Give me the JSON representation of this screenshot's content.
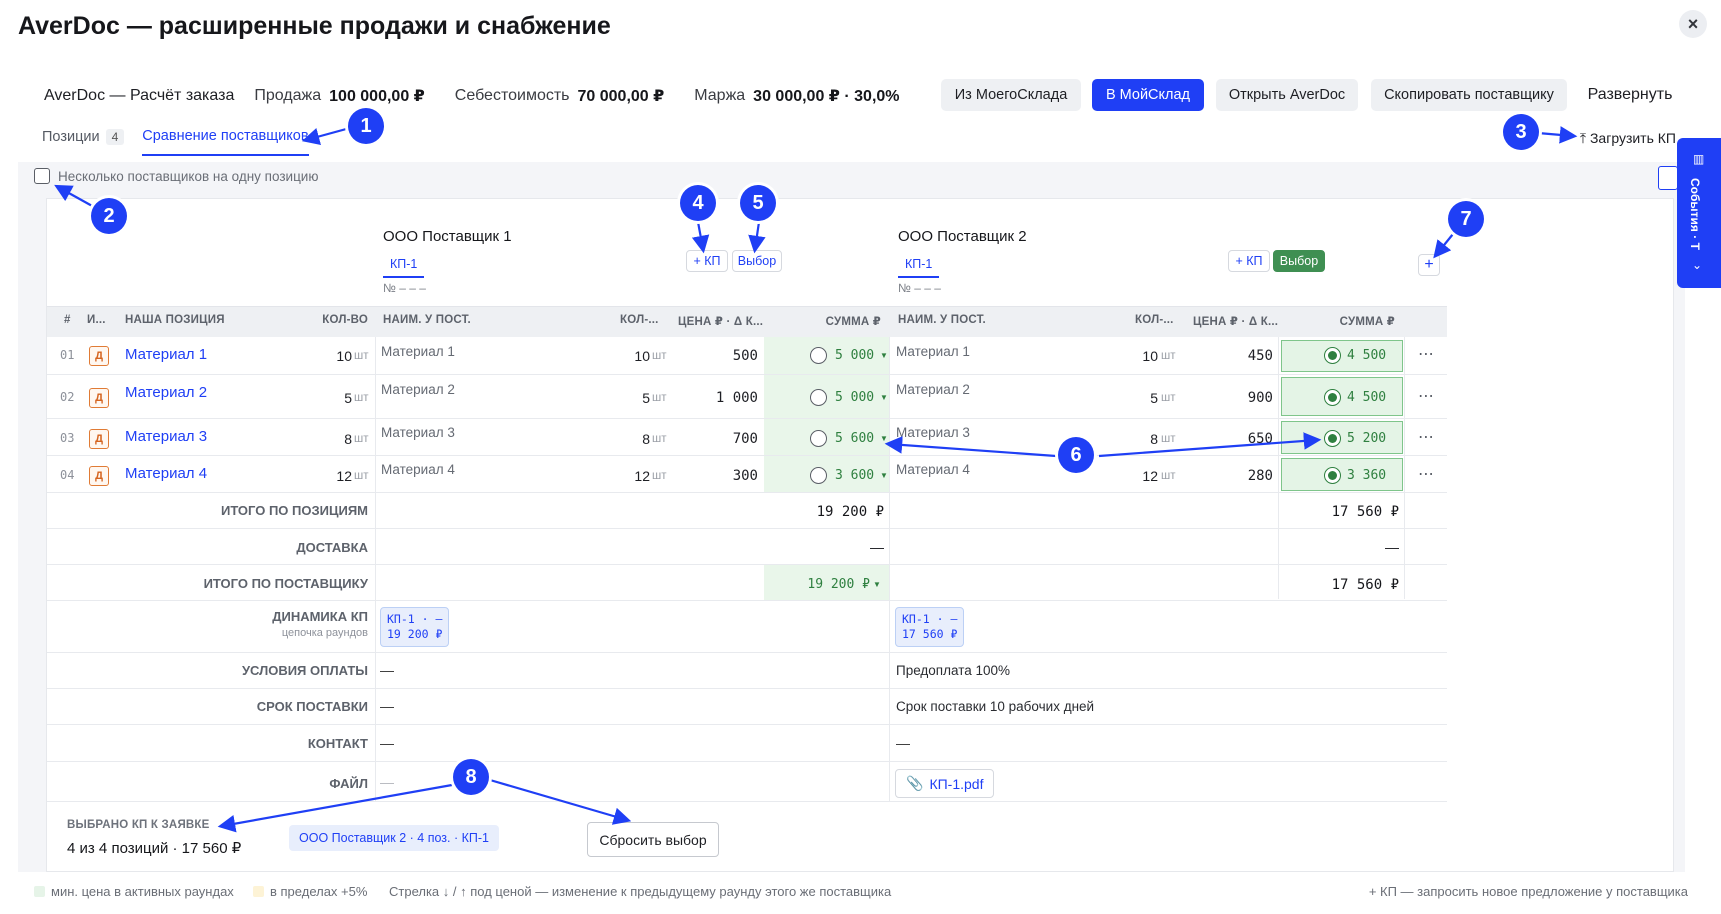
{
  "window": {
    "title": "AverDoc — расширенные продажи и снабжение",
    "close_icon": "×"
  },
  "summary": {
    "doc": "AverDoc — Расчёт заказа",
    "sale_label": "Продажа",
    "sale_value": "100 000,00 ₽",
    "cost_label": "Себестоимость",
    "cost_value": "70 000,00 ₽",
    "margin_label": "Маржа",
    "margin_value": "30 000,00 ₽ · 30,0%"
  },
  "toolbar": {
    "from_ms": "Из МоегоСклада",
    "to_ms": "В МойСклад",
    "open_averdoc": "Открыть AverDoc",
    "copy_supplier": "Скопировать поставщику",
    "expand": "Развернуть"
  },
  "tabs": [
    {
      "label": "Позиции",
      "count": "4"
    },
    {
      "label": "Сравнение поставщиков"
    }
  ],
  "upload_kp": "Загрузить КП",
  "side_panel": {
    "label": "События · Т"
  },
  "multi_supplier_label": "Несколько поставщиков на одну позицию",
  "suppliers": [
    {
      "name": "ООО Поставщик 1",
      "kp_tab": "КП-1",
      "doc_no": "№ – – –",
      "add_kp": "+ КП",
      "select": "Выбор"
    },
    {
      "name": "ООО Поставщик 2",
      "kp_tab": "КП-1",
      "doc_no": "№ – – –",
      "add_kp": "+ КП",
      "select": "Выбор"
    }
  ],
  "add_supplier": "+",
  "columns": {
    "num": "#",
    "type": "И...",
    "our_position": "НАША ПОЗИЦИЯ",
    "qty": "КОЛ-ВО",
    "sup_name": "НАИМ. У ПОСТ.",
    "sup_qty": "КОЛ-...",
    "price": "ЦЕНА ₽ · Δ К...",
    "sum": "СУММА ₽"
  },
  "rows": [
    {
      "idx": "01",
      "type": "Д",
      "name": "Материал 1",
      "qty": "10",
      "unit": "шт",
      "s1": {
        "name": "Материал 1",
        "qty": "10",
        "unit": "шт",
        "price": "500",
        "sum": "5 000"
      },
      "s2": {
        "name": "Материал 1",
        "qty": "10",
        "unit": "шт",
        "price": "450",
        "sum": "4 500"
      }
    },
    {
      "idx": "02",
      "type": "Д",
      "name": "Материал 2",
      "qty": "5",
      "unit": "шт",
      "s1": {
        "name": "Материал 2",
        "qty": "5",
        "unit": "шт",
        "price": "1 000",
        "sum": "5 000"
      },
      "s2": {
        "name": "Материал 2",
        "qty": "5",
        "unit": "шт",
        "price": "900",
        "sum": "4 500"
      }
    },
    {
      "idx": "03",
      "type": "Д",
      "name": "Материал 3",
      "qty": "8",
      "unit": "шт",
      "s1": {
        "name": "Материал 3",
        "qty": "8",
        "unit": "шт",
        "price": "700",
        "sum": "5 600"
      },
      "s2": {
        "name": "Материал 3",
        "qty": "8",
        "unit": "шт",
        "price": "650",
        "sum": "5 200"
      }
    },
    {
      "idx": "04",
      "type": "Д",
      "name": "Материал 4",
      "qty": "12",
      "unit": "шт",
      "s1": {
        "name": "Материал 4",
        "qty": "12",
        "unit": "шт",
        "price": "300",
        "sum": "3 600"
      },
      "s2": {
        "name": "Материал 4",
        "qty": "12",
        "unit": "шт",
        "price": "280",
        "sum": "3 360"
      }
    }
  ],
  "totals": {
    "positions_label": "ИТОГО ПО ПОЗИЦИЯМ",
    "s1_positions": "19 200 ₽",
    "s2_positions": "17 560 ₽",
    "delivery_label": "ДОСТАВКА",
    "s1_delivery": "—",
    "s2_delivery": "—",
    "supplier_label": "ИТОГО ПО ПОСТАВЩИКУ",
    "s1_supplier": "19 200 ₽",
    "s2_supplier": "17 560 ₽"
  },
  "dynamics": {
    "label": "ДИНАМИКА КП",
    "sublabel": "цепочка раундов",
    "s1_line1": "КП-1 · –",
    "s1_line2": "19 200 ₽",
    "s2_line1": "КП-1 · –",
    "s2_line2": "17 560 ₽"
  },
  "conditions": {
    "payment_label": "УСЛОВИЯ ОПЛАТЫ",
    "s1_payment": "—",
    "s2_payment": "Предоплата 100%",
    "delivery_term_label": "СРОК ПОСТАВКИ",
    "s1_delivery_term": "—",
    "s2_delivery_term": "Срок поставки 10 рабочих дней",
    "contact_label": "КОНТАКТ",
    "s1_contact": "—",
    "s2_contact": "—",
    "file_label": "ФАЙЛ",
    "s1_file": "—",
    "s2_file": "КП-1.pdf"
  },
  "selection": {
    "label": "ВЫБРАНО КП К ЗАЯВКЕ",
    "count": "4 из 4 позиций · 17 560 ₽",
    "chip": "ООО Поставщик 2 · 4 поз. · КП-1",
    "reset": "Сбросить выбор"
  },
  "legend": {
    "min_price": "мин. цена в активных раундах",
    "within": "в пределах +5%",
    "arrow_note": "Стрелка ↓ / ↑ под ценой — изменение к предыдущему раунду этого же поставщика",
    "kp_note": "+ КП — запросить новое предложение у поставщика",
    "colors": {
      "min_price": "#e6f4e8",
      "within": "#fdf3d6"
    }
  },
  "markers": [
    "1",
    "2",
    "3",
    "4",
    "5",
    "6",
    "7",
    "8"
  ],
  "colors": {
    "accent": "#1f3ff5",
    "green": "#2f8040",
    "orange": "#d5641f"
  }
}
